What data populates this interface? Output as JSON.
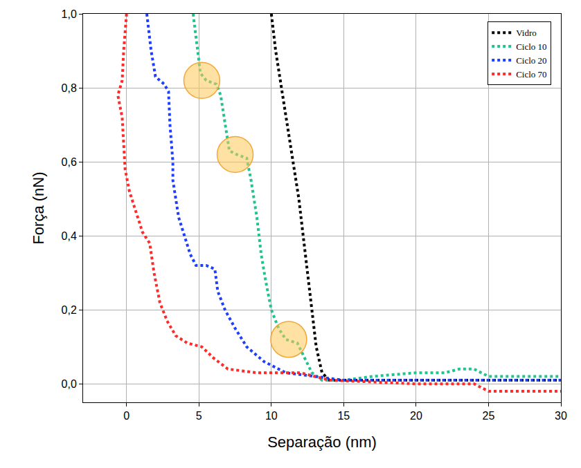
{
  "chart_data": {
    "type": "line",
    "x_label": "Separação (nm)",
    "y_label": "Força (nN)",
    "xlim": [
      -3,
      30
    ],
    "ylim": [
      -0.05,
      1.0
    ],
    "xticks": [
      0,
      5,
      10,
      15,
      20,
      25,
      30
    ],
    "yticks": [
      {
        "value": 0.0,
        "label": "0,0"
      },
      {
        "value": 0.2,
        "label": "0,2"
      },
      {
        "value": 0.4,
        "label": "0,4"
      },
      {
        "value": 0.6,
        "label": "0,6"
      },
      {
        "value": 0.8,
        "label": "0,8"
      },
      {
        "value": 1.0,
        "label": "1,0"
      }
    ],
    "grid": true,
    "legend": "top-right",
    "line_style": "dotted",
    "series": [
      {
        "name": "Vidro",
        "color": "#000000",
        "x": [
          10,
          10.3,
          10.7,
          11.1,
          11.5,
          11.9,
          12.2,
          12.5,
          12.8,
          13.1,
          13.5,
          14,
          15,
          20,
          25,
          30
        ],
        "values": [
          1.0,
          0.9,
          0.8,
          0.7,
          0.6,
          0.5,
          0.4,
          0.3,
          0.2,
          0.1,
          0.03,
          0.01,
          0.01,
          0.01,
          0.01,
          0.01
        ]
      },
      {
        "name": "Ciclo 10",
        "color": "#22c38e",
        "x": [
          4.6,
          4.9,
          5.1,
          5.5,
          6.2,
          6.5,
          6.8,
          7.1,
          7.6,
          8.3,
          8.6,
          9.0,
          9.3,
          9.6,
          10,
          10.5,
          11,
          11.8,
          12.3,
          12.8,
          13.5,
          15,
          17,
          20,
          22,
          23,
          24,
          25,
          27,
          30
        ],
        "values": [
          1.0,
          0.9,
          0.84,
          0.82,
          0.81,
          0.78,
          0.7,
          0.63,
          0.62,
          0.61,
          0.55,
          0.45,
          0.35,
          0.28,
          0.2,
          0.15,
          0.12,
          0.11,
          0.07,
          0.03,
          0.01,
          0.01,
          0.02,
          0.03,
          0.03,
          0.04,
          0.04,
          0.02,
          0.02,
          0.02
        ]
      },
      {
        "name": "Ciclo 20",
        "color": "#1f3fff",
        "x": [
          1.4,
          1.7,
          2.0,
          2.6,
          2.9,
          3.0,
          3.2,
          3.2,
          3.4,
          3.6,
          4.0,
          4.4,
          4.8,
          5.5,
          6.1,
          6.3,
          6.8,
          7.5,
          8.3,
          9.5,
          11,
          13,
          15,
          20,
          25,
          30
        ],
        "values": [
          1.0,
          0.9,
          0.83,
          0.81,
          0.79,
          0.7,
          0.6,
          0.55,
          0.5,
          0.45,
          0.4,
          0.35,
          0.32,
          0.32,
          0.31,
          0.25,
          0.2,
          0.15,
          0.1,
          0.06,
          0.03,
          0.02,
          0.01,
          0.01,
          0.01,
          0.01
        ]
      },
      {
        "name": "Ciclo 70",
        "color": "#ff2a2a",
        "x": [
          0,
          -0.2,
          -0.3,
          -0.6,
          -0.3,
          -0.2,
          -0.1,
          0.2,
          0.7,
          1.1,
          1.6,
          1.9,
          2.3,
          2.8,
          3.4,
          4.2,
          5.2,
          6,
          7,
          9,
          12,
          14,
          20,
          24,
          25,
          30
        ],
        "values": [
          1.0,
          0.9,
          0.82,
          0.78,
          0.72,
          0.65,
          0.58,
          0.52,
          0.46,
          0.41,
          0.38,
          0.3,
          0.22,
          0.17,
          0.13,
          0.11,
          0.1,
          0.07,
          0.04,
          0.03,
          0.03,
          0.01,
          0.0,
          0.0,
          -0.02,
          -0.02
        ]
      }
    ],
    "highlights": [
      {
        "x": 5.2,
        "y": 0.82
      },
      {
        "x": 7.5,
        "y": 0.62
      },
      {
        "x": 11.2,
        "y": 0.12
      }
    ]
  }
}
